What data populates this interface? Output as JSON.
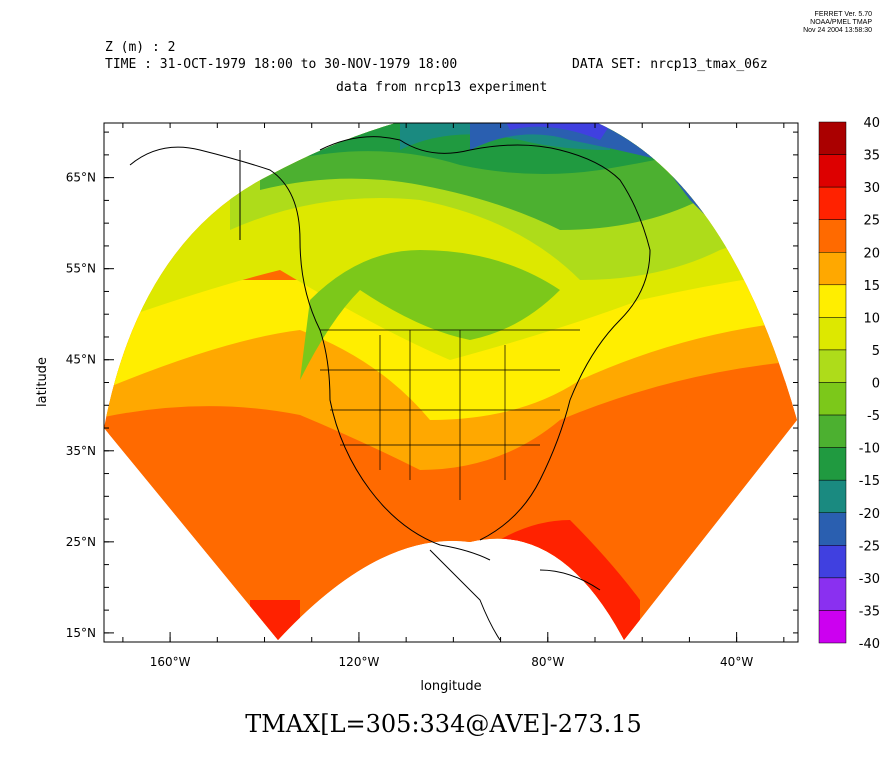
{
  "ferret": {
    "line1": "FERRET Ver. 5.70",
    "line2": "NOAA/PMEL TMAP",
    "line3": "Nov 24 2004 13:58:30"
  },
  "header": {
    "z_line": "Z (m) : 2",
    "time_line": "TIME : 31-OCT-1979 18:00 to 30-NOV-1979 18:00",
    "dataset_line": "DATA SET: nrcp13_tmax_06z",
    "subtitle": "data from nrcp13 experiment"
  },
  "chart_data": {
    "type": "heatmap",
    "title": "TMAX[L=305:334@AVE]-273.15",
    "xlabel": "longitude",
    "ylabel": "latitude",
    "xlim": [
      -174,
      -27
    ],
    "ylim": [
      14,
      71
    ],
    "x_ticks": [
      "160°W",
      "120°W",
      "80°W",
      "40°W"
    ],
    "x_tick_values": [
      -160,
      -120,
      -80,
      -40
    ],
    "y_ticks": [
      "65°N",
      "55°N",
      "45°N",
      "35°N",
      "25°N",
      "15°N"
    ],
    "y_tick_values": [
      65,
      55,
      45,
      35,
      25,
      15
    ],
    "colorbar": {
      "levels": [
        "40",
        "35",
        "30",
        "25",
        "20",
        "15",
        "10",
        "5",
        "0",
        "-5",
        "-10",
        "-15",
        "-20",
        "-25",
        "-30",
        "-35",
        "-40"
      ],
      "colors": [
        "#aa0000",
        "#dd0000",
        "#ff2200",
        "#ff6a00",
        "#ffa800",
        "#ffee00",
        "#dde800",
        "#aedc1a",
        "#7cc81a",
        "#4cb030",
        "#209a40",
        "#1a8a80",
        "#2a5fb0",
        "#4040e0",
        "#8a30f0",
        "#cc00f0"
      ]
    }
  }
}
